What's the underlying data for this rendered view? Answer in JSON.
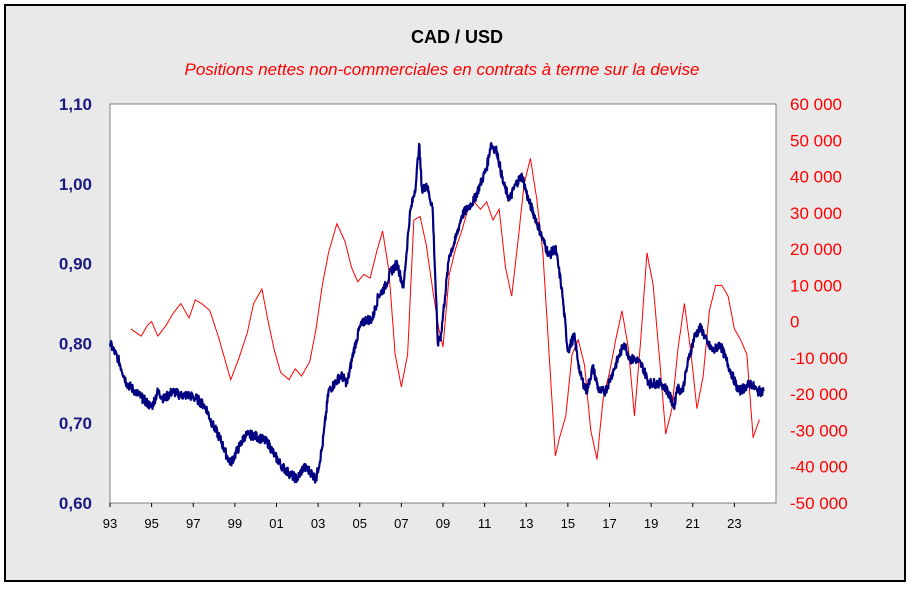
{
  "chart_data": {
    "type": "line",
    "title": "CAD / USD",
    "subtitle": "Positions nettes non-commerciales en contrats à terme sur la devise",
    "x_tick_labels": [
      "93",
      "95",
      "97",
      "99",
      "01",
      "03",
      "05",
      "07",
      "09",
      "11",
      "13",
      "15",
      "17",
      "19",
      "21",
      "23"
    ],
    "x_range": [
      1993,
      2025
    ],
    "y_left": {
      "range": [
        0.6,
        1.1
      ],
      "ticks": [
        0.6,
        0.7,
        0.8,
        0.9,
        1.0,
        1.1
      ],
      "tick_labels": [
        "0,60",
        "0,70",
        "0,80",
        "0,90",
        "1,00",
        "1,10"
      ],
      "color": "#1a1a80"
    },
    "y_right": {
      "range": [
        -50000,
        60000
      ],
      "ticks": [
        -50000,
        -40000,
        -30000,
        -20000,
        -10000,
        0,
        10000,
        20000,
        30000,
        40000,
        50000,
        60000
      ],
      "tick_labels": [
        "-50 000",
        "-40 000",
        "-30 000",
        "-20 000",
        "-10 000",
        "0",
        "10 000",
        "20 000",
        "30 000",
        "40 000",
        "50 000",
        "60 000"
      ],
      "color": "#ff0000"
    },
    "grid": false,
    "legend": "none",
    "series": [
      {
        "axis": "left",
        "color": "#000080",
        "x": [
          1993.0,
          1993.4,
          1993.8,
          1994.2,
          1994.6,
          1995.0,
          1995.3,
          1995.6,
          1996.0,
          1996.4,
          1996.8,
          1997.2,
          1997.6,
          1997.9,
          1998.3,
          1998.6,
          1998.8,
          1999.1,
          1999.5,
          1999.9,
          2000.3,
          2000.6,
          2000.9,
          2001.3,
          2001.7,
          2002.0,
          2002.3,
          2002.6,
          2002.9,
          2003.2,
          2003.5,
          2003.8,
          2004.1,
          2004.4,
          2004.7,
          2005.0,
          2005.3,
          2005.6,
          2005.9,
          2006.2,
          2006.5,
          2006.8,
          2007.1,
          2007.4,
          2007.7,
          2007.85,
          2008.0,
          2008.2,
          2008.5,
          2008.75,
          2008.9,
          2009.1,
          2009.3,
          2009.6,
          2009.9,
          2010.2,
          2010.5,
          2010.8,
          2011.1,
          2011.3,
          2011.6,
          2011.9,
          2012.2,
          2012.5,
          2012.8,
          2013.1,
          2013.4,
          2013.8,
          2014.1,
          2014.4,
          2014.7,
          2015.0,
          2015.3,
          2015.6,
          2015.9,
          2016.2,
          2016.5,
          2016.8,
          2017.1,
          2017.4,
          2017.7,
          2018.0,
          2018.3,
          2018.6,
          2018.9,
          2019.2,
          2019.5,
          2019.8,
          2020.1,
          2020.25,
          2020.5,
          2020.8,
          2021.1,
          2021.4,
          2021.7,
          2022.0,
          2022.3,
          2022.6,
          2022.9,
          2023.2,
          2023.5,
          2023.8,
          2024.1,
          2024.4
        ],
        "values": [
          0.8,
          0.78,
          0.75,
          0.74,
          0.73,
          0.72,
          0.74,
          0.73,
          0.74,
          0.735,
          0.735,
          0.73,
          0.72,
          0.7,
          0.68,
          0.66,
          0.65,
          0.665,
          0.685,
          0.685,
          0.68,
          0.675,
          0.66,
          0.645,
          0.635,
          0.63,
          0.645,
          0.64,
          0.63,
          0.67,
          0.74,
          0.75,
          0.76,
          0.75,
          0.79,
          0.82,
          0.83,
          0.83,
          0.86,
          0.87,
          0.89,
          0.9,
          0.87,
          0.96,
          1.0,
          1.05,
          0.99,
          1.0,
          0.97,
          0.8,
          0.81,
          0.86,
          0.91,
          0.93,
          0.96,
          0.97,
          0.98,
          1.0,
          1.02,
          1.05,
          1.04,
          1.0,
          0.98,
          1.0,
          1.01,
          0.98,
          0.96,
          0.93,
          0.91,
          0.92,
          0.87,
          0.79,
          0.81,
          0.76,
          0.74,
          0.77,
          0.74,
          0.74,
          0.76,
          0.78,
          0.8,
          0.78,
          0.78,
          0.77,
          0.75,
          0.75,
          0.75,
          0.74,
          0.72,
          0.745,
          0.74,
          0.78,
          0.81,
          0.82,
          0.8,
          0.79,
          0.8,
          0.78,
          0.76,
          0.74,
          0.745,
          0.75,
          0.74,
          0.74
        ]
      },
      {
        "axis": "right",
        "color": "#ff0000",
        "x": [
          1994.0,
          1994.5,
          1994.8,
          1995.0,
          1995.3,
          1995.7,
          1996.0,
          1996.4,
          1996.8,
          1997.1,
          1997.4,
          1997.8,
          1998.2,
          1998.5,
          1998.8,
          1999.2,
          1999.6,
          1999.9,
          2000.3,
          2000.6,
          2000.9,
          2001.2,
          2001.6,
          2001.9,
          2002.2,
          2002.6,
          2002.9,
          2003.2,
          2003.5,
          2003.9,
          2004.3,
          2004.6,
          2004.9,
          2005.2,
          2005.5,
          2005.8,
          2006.1,
          2006.4,
          2006.7,
          2007.0,
          2007.3,
          2007.6,
          2007.9,
          2008.2,
          2008.5,
          2008.8,
          2009.0,
          2009.3,
          2009.6,
          2009.9,
          2010.2,
          2010.5,
          2010.8,
          2011.1,
          2011.4,
          2011.7,
          2012.0,
          2012.3,
          2012.6,
          2012.9,
          2013.2,
          2013.5,
          2013.8,
          2014.1,
          2014.4,
          2014.6,
          2014.9,
          2015.2,
          2015.5,
          2015.8,
          2016.1,
          2016.4,
          2016.7,
          2017.0,
          2017.3,
          2017.6,
          2017.9,
          2018.2,
          2018.5,
          2018.8,
          2019.1,
          2019.4,
          2019.7,
          2020.0,
          2020.3,
          2020.6,
          2020.9,
          2021.2,
          2021.5,
          2021.8,
          2022.1,
          2022.4,
          2022.7,
          2023.0,
          2023.3,
          2023.6,
          2023.9,
          2024.2
        ],
        "values": [
          -2000,
          -4000,
          -1000,
          0,
          -4000,
          -1000,
          2000,
          5000,
          1000,
          6000,
          5000,
          3000,
          -4000,
          -10000,
          -16000,
          -10000,
          -3000,
          5000,
          9000,
          0,
          -8000,
          -14000,
          -16000,
          -13000,
          -15000,
          -11000,
          -2000,
          10000,
          19000,
          27000,
          22000,
          15000,
          11000,
          13000,
          12000,
          19000,
          25000,
          14000,
          -9000,
          -18000,
          -9000,
          28000,
          29000,
          21000,
          9000,
          -2000,
          -7000,
          13000,
          20000,
          25000,
          31000,
          33000,
          31000,
          33000,
          28000,
          31000,
          15000,
          7000,
          22000,
          38000,
          45000,
          34000,
          19000,
          -9000,
          -37000,
          -32000,
          -26000,
          -9000,
          -5000,
          -12000,
          -30000,
          -38000,
          -21000,
          -14000,
          -5000,
          3000,
          -7000,
          -26000,
          -5000,
          19000,
          10000,
          -10000,
          -31000,
          -24000,
          -7000,
          5000,
          -8000,
          -24000,
          -15000,
          3000,
          10000,
          10000,
          7000,
          -2000,
          -5000,
          -9000,
          -32000,
          -27000
        ]
      }
    ]
  }
}
